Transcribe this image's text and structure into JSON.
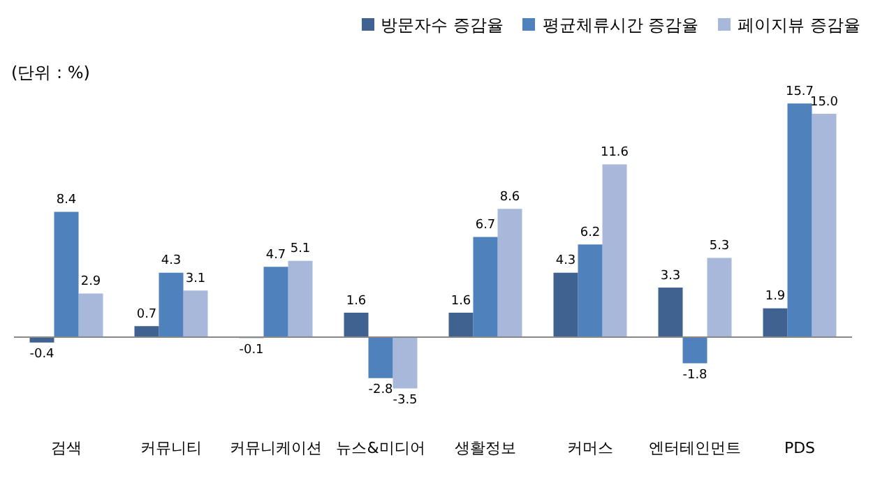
{
  "chart_data": {
    "type": "bar",
    "annotations": [
      "(단위 : %)"
    ],
    "categories": [
      "검색",
      "커뮤니티",
      "커뮤니케이션",
      "뉴스&미디어",
      "생활정보",
      "커머스",
      "엔터테인먼트",
      "PDS"
    ],
    "series": [
      {
        "name": "방문자수 증감율",
        "color": "#3f6290",
        "values": [
          -0.4,
          0.7,
          -0.1,
          1.6,
          1.6,
          4.3,
          3.3,
          1.9
        ],
        "value_labels": [
          "-0.4",
          "0.7",
          "-0.1",
          "1.6",
          "1.6",
          "4.3",
          "3.3",
          "1.9"
        ]
      },
      {
        "name": "평균체류시간 증감율",
        "color": "#4f81bd",
        "values": [
          8.4,
          4.3,
          4.7,
          -2.8,
          6.7,
          6.2,
          -1.8,
          15.7
        ],
        "value_labels": [
          "8.4",
          "4.3",
          "4.7",
          "-2.8",
          "6.7",
          "6.2",
          "-1.8",
          "15.7"
        ]
      },
      {
        "name": "페이지뷰 증감율",
        "color": "#a7b8da",
        "values": [
          2.9,
          3.1,
          5.1,
          -3.5,
          8.6,
          11.6,
          5.3,
          15.0
        ],
        "value_labels": [
          "2.9",
          "3.1",
          "5.1",
          "-3.5",
          "8.6",
          "11.6",
          "5.3",
          "15.0"
        ]
      }
    ],
    "legend": "top right",
    "tick_labels": "x"
  }
}
